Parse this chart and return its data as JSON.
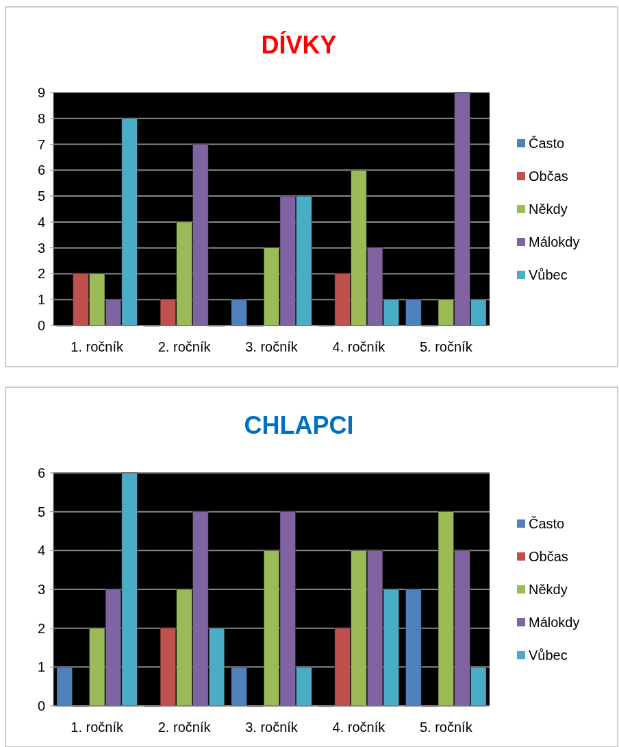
{
  "chart_data": [
    {
      "type": "bar",
      "title": "DÍVKY",
      "categories": [
        "1. ročník",
        "2. ročník",
        "3. ročník",
        "4. ročník",
        "5. ročník"
      ],
      "series": [
        {
          "name": "Často",
          "color": "#4f81bd",
          "values": [
            0,
            0,
            1,
            0,
            1
          ]
        },
        {
          "name": "Občas",
          "color": "#c0504d",
          "values": [
            2,
            1,
            0,
            2,
            0
          ]
        },
        {
          "name": "Někdy",
          "color": "#9bbb59",
          "values": [
            2,
            4,
            3,
            6,
            1
          ]
        },
        {
          "name": "Málokdy",
          "color": "#8064a2",
          "values": [
            1,
            7,
            5,
            3,
            9
          ]
        },
        {
          "name": "Vůbec",
          "color": "#4bacc6",
          "values": [
            8,
            0,
            5,
            1,
            1
          ]
        }
      ],
      "ylim": [
        0,
        9
      ],
      "yticks": [
        0,
        1,
        2,
        3,
        4,
        5,
        6,
        7,
        8,
        9
      ],
      "grid": "y",
      "legend": "right"
    },
    {
      "type": "bar",
      "title": "CHLAPCI",
      "categories": [
        "1. ročník",
        "2. ročník",
        "3. ročník",
        "4. ročník",
        "5. ročník"
      ],
      "series": [
        {
          "name": "Často",
          "color": "#4f81bd",
          "values": [
            1,
            0,
            1,
            0,
            3
          ]
        },
        {
          "name": "Občas",
          "color": "#c0504d",
          "values": [
            0,
            2,
            0,
            2,
            0
          ]
        },
        {
          "name": "Někdy",
          "color": "#9bbb59",
          "values": [
            2,
            3,
            4,
            4,
            5
          ]
        },
        {
          "name": "Málokdy",
          "color": "#8064a2",
          "values": [
            3,
            5,
            5,
            4,
            4
          ]
        },
        {
          "name": "Vůbec",
          "color": "#4bacc6",
          "values": [
            6,
            2,
            1,
            3,
            1
          ]
        }
      ],
      "ylim": [
        0,
        6
      ],
      "yticks": [
        0,
        1,
        2,
        3,
        4,
        5,
        6
      ],
      "grid": "y",
      "legend": "right"
    }
  ]
}
